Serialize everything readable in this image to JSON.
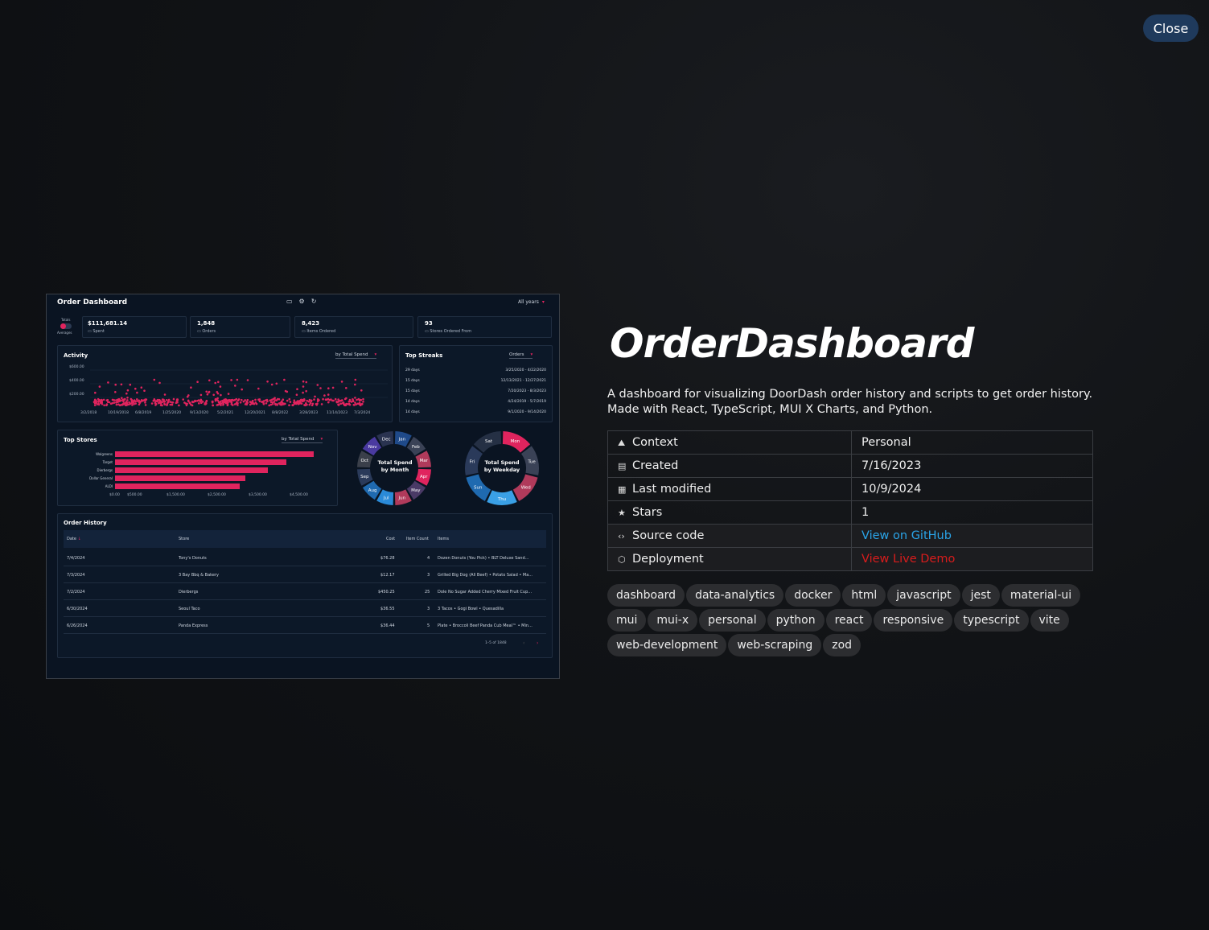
{
  "close_label": "Close",
  "screenshot": {
    "title": "Order Dashboard",
    "years": "All years",
    "totals_label": "Totals",
    "averages_label": "Averages",
    "stats": [
      {
        "value": "$111,681.14",
        "label": "Spent"
      },
      {
        "value": "1,848",
        "label": "Orders"
      },
      {
        "value": "8,423",
        "label": "Items Ordered"
      },
      {
        "value": "93",
        "label": "Stores Ordered From"
      }
    ],
    "activity": {
      "title": "Activity",
      "dropdown": "by Total Spend",
      "y_ticks": [
        "$600.00",
        "$400.00",
        "$200.00"
      ],
      "x_ticks": [
        "3/2/2018",
        "10/19/2018",
        "6/8/2019",
        "1/25/2020",
        "9/13/2020",
        "5/2/2021",
        "12/20/2021",
        "8/8/2022",
        "3/28/2023",
        "11/14/2023",
        "7/3/2024"
      ]
    },
    "top_streaks": {
      "title": "Top Streaks",
      "dropdown": "Orders",
      "rows": [
        {
          "days": "29 days",
          "range": "3/25/2020 - 4/22/2020"
        },
        {
          "days": "15 days",
          "range": "12/13/2021 - 12/27/2021"
        },
        {
          "days": "15 days",
          "range": "7/20/2023 - 8/3/2023"
        },
        {
          "days": "14 days",
          "range": "4/24/2019 - 5/7/2019"
        },
        {
          "days": "14 days",
          "range": "9/1/2020 - 9/14/2020"
        }
      ]
    },
    "top_stores": {
      "title": "Top Stores",
      "dropdown": "by Total Spend",
      "stores": [
        "Walgreens",
        "Target",
        "Dierbergs",
        "Dollar General",
        "ALDI"
      ],
      "x_ticks": [
        "$0.00",
        "$500.00",
        "$1,500.00",
        "$2,500.00",
        "$3,500.00",
        "$4,500.00"
      ]
    },
    "month_donut": {
      "label_line1": "Total Spend",
      "label_line2": "by Month",
      "months": [
        "Jan",
        "Feb",
        "Mar",
        "Apr",
        "May",
        "Jun",
        "Jul",
        "Aug",
        "Sep",
        "Oct",
        "Nov",
        "Dec"
      ]
    },
    "weekday_donut": {
      "label_line1": "Total Spend",
      "label_line2": "by Weekday",
      "days": [
        "Mon",
        "Tue",
        "Wed",
        "Thu",
        "Sun",
        "Fri",
        "Sat"
      ]
    },
    "order_history": {
      "title": "Order History",
      "headers": {
        "date": "Date",
        "store": "Store",
        "cost": "Cost",
        "items": "Item Count",
        "item_list": "Items"
      },
      "rows": [
        {
          "date": "7/4/2024",
          "store": "Tony's Donuts",
          "cost": "$76.28",
          "count": "4",
          "items": "Dozen Donuts (You Pick) • BLT Deluxe Sand..."
        },
        {
          "date": "7/3/2024",
          "store": "3 Bay Bbq & Bakery",
          "cost": "$12.17",
          "count": "3",
          "items": "Grilled Big Dog (All Beef) • Potato Salad • Ma..."
        },
        {
          "date": "7/2/2024",
          "store": "Dierbergs",
          "cost": "$450.25",
          "count": "25",
          "items": "Dole No Sugar Added Cherry Mixed Fruit Cup..."
        },
        {
          "date": "6/30/2024",
          "store": "Seoul Taco",
          "cost": "$36.55",
          "count": "3",
          "items": "3 Tacos • Gogi Bowl • Quesadilla"
        },
        {
          "date": "6/26/2024",
          "store": "Panda Express",
          "cost": "$36.44",
          "count": "5",
          "items": "Plate • Broccoli Beef Panda Cub Meal™ • Min..."
        }
      ],
      "pagination": "1–5 of 1848"
    }
  },
  "project": {
    "title": "OrderDashboard",
    "description": "A dashboard for visualizing DoorDash order history and scripts to get order history. Made with React, TypeScript, MUI X Charts, and Python.",
    "info": [
      {
        "key": "Context",
        "value": "Personal",
        "icon": "mountain-icon"
      },
      {
        "key": "Created",
        "value": "7/16/2023",
        "icon": "calendar-icon"
      },
      {
        "key": "Last modified",
        "value": "10/9/2024",
        "icon": "calendar-edit-icon"
      },
      {
        "key": "Stars",
        "value": "1",
        "icon": "star-icon"
      },
      {
        "key": "Source code",
        "value": "View on GitHub",
        "icon": "code-icon"
      },
      {
        "key": "Deployment",
        "value": "View Live Demo",
        "icon": "cube-icon"
      }
    ],
    "tags": [
      "dashboard",
      "data-analytics",
      "docker",
      "html",
      "javascript",
      "jest",
      "material-ui",
      "mui",
      "mui-x",
      "personal",
      "python",
      "react",
      "responsive",
      "typescript",
      "vite",
      "web-development",
      "web-scraping",
      "zod"
    ]
  },
  "colors": {
    "accent": "#e0245e",
    "link_blue": "#2aa3e6",
    "link_red": "#d81c1c",
    "close_bg": "#1f3a5c"
  }
}
